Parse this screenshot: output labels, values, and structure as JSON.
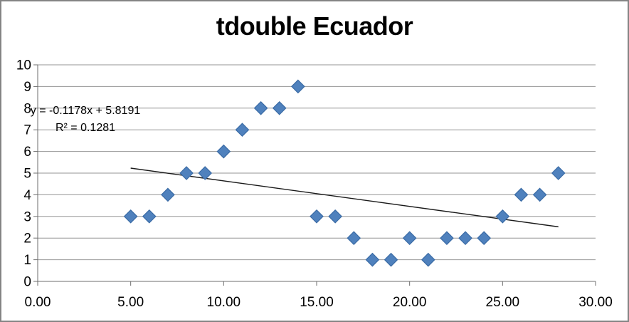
{
  "frame": {
    "background": "#FFFFFF",
    "border_color": "#848484"
  },
  "chart_data": {
    "type": "scatter",
    "title": "tdouble Ecuador",
    "xlabel": "",
    "ylabel": "",
    "points": [
      [
        5,
        3
      ],
      [
        6,
        3
      ],
      [
        7,
        4
      ],
      [
        8,
        5
      ],
      [
        9,
        5
      ],
      [
        10,
        6
      ],
      [
        11,
        7
      ],
      [
        12,
        8
      ],
      [
        13,
        8
      ],
      [
        14,
        9
      ],
      [
        15,
        3
      ],
      [
        16,
        3
      ],
      [
        17,
        2
      ],
      [
        18,
        1
      ],
      [
        19,
        1
      ],
      [
        20,
        2
      ],
      [
        21,
        1
      ],
      [
        22,
        2
      ],
      [
        23,
        2
      ],
      [
        24,
        2
      ],
      [
        25,
        3
      ],
      [
        26,
        4
      ],
      [
        27,
        4
      ],
      [
        28,
        5
      ]
    ],
    "xlim": [
      0,
      30
    ],
    "ylim": [
      0,
      10
    ],
    "x_tick_values": [
      0,
      5,
      10,
      15,
      20,
      25,
      30
    ],
    "x_tick_labels": [
      "0.00",
      "5.00",
      "10.00",
      "15.00",
      "20.00",
      "25.00",
      "30.00"
    ],
    "y_tick_values": [
      0,
      1,
      2,
      3,
      4,
      5,
      6,
      7,
      8,
      9,
      10
    ],
    "y_tick_labels": [
      "0",
      "1",
      "2",
      "3",
      "4",
      "5",
      "6",
      "7",
      "8",
      "9",
      "10"
    ],
    "grid": true,
    "gridlines": "horizontal-only",
    "legend": "none",
    "trendline": {
      "type": "linear",
      "slope": -0.1178,
      "intercept": 5.8191,
      "x_start": 5,
      "x_end": 28,
      "equation_label": "y = -0.1178x + 5.8191",
      "r2_label": "R² = 0.1281"
    },
    "colors": {
      "marker_fill": "#4F81BD",
      "marker_stroke": "#3A6BA5",
      "trendline": "#1A1A1A",
      "gridline": "#969696",
      "axis": "#6E6E6E",
      "tick_text": "#000000",
      "title_text": "#000000"
    }
  }
}
